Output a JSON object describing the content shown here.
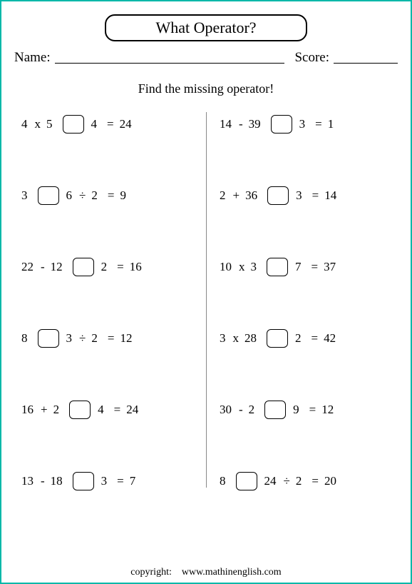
{
  "title": "What Operator?",
  "name_label": "Name:",
  "score_label": "Score:",
  "instruction": "Find the missing operator!",
  "copyright_label": "copyright:",
  "copyright_site": "www.mathinenglish.com",
  "colors": {
    "border": "#00b8a9",
    "text": "#000000",
    "divider": "#888888",
    "background": "#ffffff"
  },
  "problems": {
    "left": [
      {
        "tokens": [
          "4",
          "x",
          "5",
          "BOX",
          "4",
          "=",
          "24"
        ]
      },
      {
        "tokens": [
          "3",
          "BOX",
          "6",
          "÷",
          "2",
          "=",
          "9"
        ]
      },
      {
        "tokens": [
          "22",
          "-",
          "12",
          "BOX",
          "2",
          "=",
          "16"
        ]
      },
      {
        "tokens": [
          "8",
          "BOX",
          "3",
          "÷",
          "2",
          "=",
          "12"
        ]
      },
      {
        "tokens": [
          "16",
          "+",
          "2",
          "BOX",
          "4",
          "=",
          "24"
        ]
      },
      {
        "tokens": [
          "13",
          "-",
          "18",
          "BOX",
          "3",
          "=",
          "7"
        ]
      }
    ],
    "right": [
      {
        "tokens": [
          "14",
          "-",
          "39",
          "BOX",
          "3",
          "=",
          "1"
        ]
      },
      {
        "tokens": [
          "2",
          "+",
          "36",
          "BOX",
          "3",
          "=",
          "14"
        ]
      },
      {
        "tokens": [
          "10",
          "x",
          "3",
          "BOX",
          "7",
          "=",
          "37"
        ]
      },
      {
        "tokens": [
          "3",
          "x",
          "28",
          "BOX",
          "2",
          "=",
          "42"
        ]
      },
      {
        "tokens": [
          "30",
          "-",
          "2",
          "BOX",
          "9",
          "=",
          "12"
        ]
      },
      {
        "tokens": [
          "8",
          "BOX",
          "24",
          "÷",
          "2",
          "=",
          "20"
        ]
      }
    ]
  }
}
